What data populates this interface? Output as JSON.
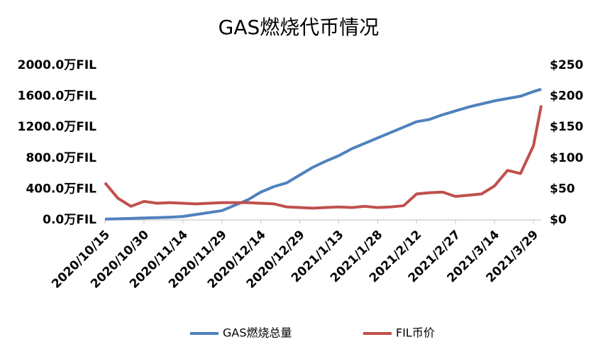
{
  "chart_data": {
    "type": "line",
    "title": "GAS燃烧代币情况",
    "x": [
      "2020/10/15",
      "2020/10/20",
      "2020/10/25",
      "2020/10/30",
      "2020/11/4",
      "2020/11/9",
      "2020/11/14",
      "2020/11/19",
      "2020/11/24",
      "2020/11/29",
      "2020/12/4",
      "2020/12/9",
      "2020/12/14",
      "2020/12/19",
      "2020/12/24",
      "2020/12/29",
      "2021/1/3",
      "2021/1/8",
      "2021/1/13",
      "2021/1/18",
      "2021/1/23",
      "2021/1/28",
      "2021/2/2",
      "2021/2/7",
      "2021/2/12",
      "2021/2/17",
      "2021/2/22",
      "2021/2/27",
      "2021/3/4",
      "2021/3/9",
      "2021/3/14",
      "2021/3/19",
      "2021/3/24",
      "2021/3/29",
      "2021/4/1"
    ],
    "xlim": [
      "2020/10/15",
      "2021/4/1"
    ],
    "xticks": [
      "2020/10/15",
      "2020/10/30",
      "2020/11/14",
      "2020/11/29",
      "2020/12/14",
      "2020/12/29",
      "2021/1/13",
      "2021/1/28",
      "2021/2/12",
      "2021/2/27",
      "2021/3/14",
      "2021/3/29"
    ],
    "ylim": [
      0,
      2000
    ],
    "yticks": [
      {
        "value": 0,
        "label": "0.0万FIL"
      },
      {
        "value": 400,
        "label": "400.0万FIL"
      },
      {
        "value": 800,
        "label": "800.0万FIL"
      },
      {
        "value": 1200,
        "label": "1200.0万FIL"
      },
      {
        "value": 1600,
        "label": "1600.0万FIL"
      },
      {
        "value": 2000,
        "label": "2000.0万FIL"
      }
    ],
    "y2lim": [
      0,
      250
    ],
    "y2ticks": [
      {
        "value": 0,
        "label": "$0"
      },
      {
        "value": 50,
        "label": "$50"
      },
      {
        "value": 100,
        "label": "$100"
      },
      {
        "value": 150,
        "label": "$150"
      },
      {
        "value": 200,
        "label": "$200"
      },
      {
        "value": 250,
        "label": "$250"
      }
    ],
    "series": [
      {
        "name": "GAS燃烧总量",
        "color": "#4f81bd",
        "values": [
          10,
          15,
          20,
          25,
          30,
          35,
          45,
          70,
          95,
          120,
          190,
          260,
          360,
          430,
          480,
          580,
          680,
          760,
          830,
          920,
          990,
          1060,
          1130,
          1200,
          1270,
          1300,
          1360,
          1410,
          1460,
          1500,
          1540,
          1570,
          1600,
          1660,
          1690
        ]
      },
      {
        "name": "FIL币价",
        "color": "#c0504d",
        "axis": "y2",
        "values": [
          60,
          35,
          22,
          30,
          27,
          28,
          27,
          26,
          27,
          28,
          28,
          28,
          27,
          26,
          21,
          20,
          19,
          20,
          21,
          20,
          22,
          20,
          21,
          23,
          42,
          44,
          45,
          38,
          40,
          42,
          55,
          80,
          75,
          120,
          185
        ]
      }
    ]
  }
}
